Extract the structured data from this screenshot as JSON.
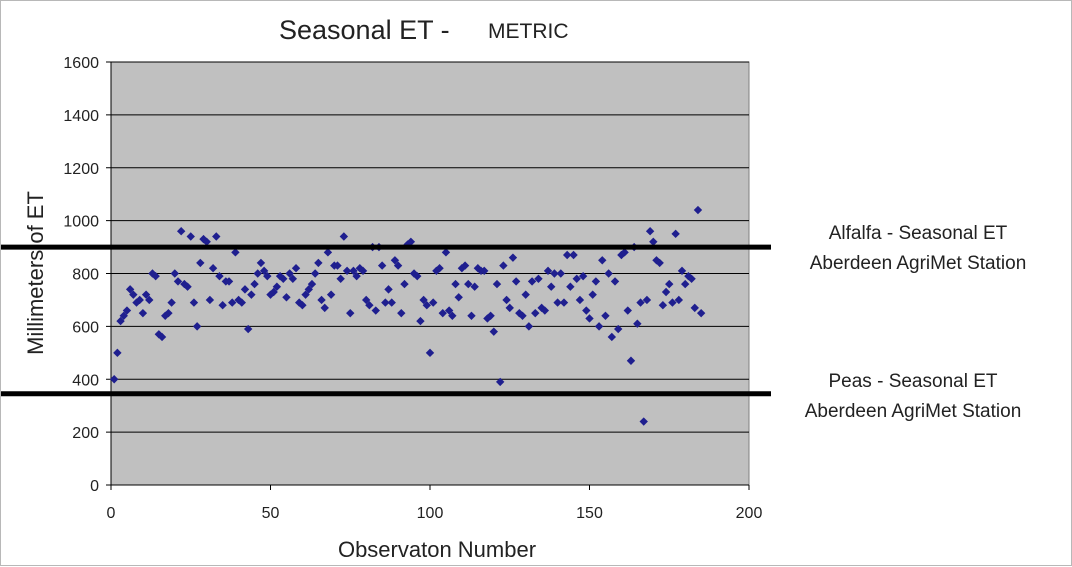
{
  "chart_data": {
    "type": "scatter",
    "title": "Seasonal ET -",
    "title_suffix": "METRIC",
    "xlabel": "Observaton Number",
    "ylabel": "Millimeters of ET",
    "xlim": [
      0,
      200
    ],
    "ylim": [
      0,
      1600
    ],
    "xticks": [
      0,
      50,
      100,
      150,
      200
    ],
    "yticks": [
      0,
      200,
      400,
      600,
      800,
      1000,
      1200,
      1400,
      1600
    ],
    "grid": true,
    "plot_background": "#c0c0c0",
    "point_color": "#1f1f8f",
    "reference_lines": [
      {
        "y": 900,
        "color": "#000000",
        "label_lines": [
          "Alfalfa - Seasonal ET",
          "Aberdeen AgriMet Station"
        ]
      },
      {
        "y": 345,
        "color": "#000000",
        "label_lines": [
          "Peas - Seasonal ET",
          "Aberdeen AgriMet Station"
        ]
      }
    ],
    "series": [
      {
        "points": [
          [
            1,
            400
          ],
          [
            2,
            500
          ],
          [
            3,
            620
          ],
          [
            4,
            640
          ],
          [
            5,
            660
          ],
          [
            6,
            740
          ],
          [
            7,
            720
          ],
          [
            8,
            690
          ],
          [
            9,
            700
          ],
          [
            10,
            650
          ],
          [
            11,
            720
          ],
          [
            12,
            700
          ],
          [
            13,
            800
          ],
          [
            14,
            790
          ],
          [
            15,
            570
          ],
          [
            16,
            560
          ],
          [
            17,
            640
          ],
          [
            18,
            650
          ],
          [
            19,
            690
          ],
          [
            20,
            800
          ],
          [
            21,
            770
          ],
          [
            22,
            960
          ],
          [
            23,
            760
          ],
          [
            24,
            750
          ],
          [
            25,
            940
          ],
          [
            26,
            690
          ],
          [
            27,
            600
          ],
          [
            28,
            840
          ],
          [
            29,
            930
          ],
          [
            30,
            920
          ],
          [
            31,
            700
          ],
          [
            32,
            820
          ],
          [
            33,
            940
          ],
          [
            34,
            790
          ],
          [
            35,
            680
          ],
          [
            36,
            770
          ],
          [
            37,
            770
          ],
          [
            38,
            690
          ],
          [
            39,
            880
          ],
          [
            40,
            700
          ],
          [
            41,
            690
          ],
          [
            42,
            740
          ],
          [
            43,
            590
          ],
          [
            44,
            720
          ],
          [
            45,
            760
          ],
          [
            46,
            800
          ],
          [
            47,
            840
          ],
          [
            48,
            810
          ],
          [
            49,
            790
          ],
          [
            50,
            720
          ],
          [
            51,
            730
          ],
          [
            52,
            750
          ],
          [
            53,
            790
          ],
          [
            54,
            780
          ],
          [
            55,
            710
          ],
          [
            56,
            800
          ],
          [
            57,
            780
          ],
          [
            58,
            820
          ],
          [
            59,
            690
          ],
          [
            60,
            680
          ],
          [
            61,
            720
          ],
          [
            62,
            740
          ],
          [
            63,
            760
          ],
          [
            64,
            800
          ],
          [
            65,
            840
          ],
          [
            66,
            700
          ],
          [
            67,
            670
          ],
          [
            68,
            880
          ],
          [
            69,
            720
          ],
          [
            70,
            830
          ],
          [
            71,
            830
          ],
          [
            72,
            780
          ],
          [
            73,
            940
          ],
          [
            74,
            810
          ],
          [
            75,
            650
          ],
          [
            76,
            810
          ],
          [
            77,
            790
          ],
          [
            78,
            820
          ],
          [
            79,
            810
          ],
          [
            80,
            700
          ],
          [
            81,
            680
          ],
          [
            82,
            900
          ],
          [
            83,
            660
          ],
          [
            84,
            900
          ],
          [
            85,
            830
          ],
          [
            86,
            690
          ],
          [
            87,
            740
          ],
          [
            88,
            690
          ],
          [
            89,
            850
          ],
          [
            90,
            830
          ],
          [
            91,
            650
          ],
          [
            92,
            760
          ],
          [
            93,
            910
          ],
          [
            94,
            920
          ],
          [
            95,
            800
          ],
          [
            96,
            790
          ],
          [
            97,
            620
          ],
          [
            98,
            700
          ],
          [
            99,
            680
          ],
          [
            100,
            500
          ],
          [
            101,
            690
          ],
          [
            102,
            810
          ],
          [
            103,
            820
          ],
          [
            104,
            650
          ],
          [
            105,
            880
          ],
          [
            106,
            660
          ],
          [
            107,
            640
          ],
          [
            108,
            760
          ],
          [
            109,
            710
          ],
          [
            110,
            820
          ],
          [
            111,
            830
          ],
          [
            112,
            760
          ],
          [
            113,
            640
          ],
          [
            114,
            750
          ],
          [
            115,
            820
          ],
          [
            116,
            810
          ],
          [
            117,
            810
          ],
          [
            118,
            630
          ],
          [
            119,
            640
          ],
          [
            120,
            580
          ],
          [
            121,
            760
          ],
          [
            122,
            390
          ],
          [
            123,
            830
          ],
          [
            124,
            700
          ],
          [
            125,
            670
          ],
          [
            126,
            860
          ],
          [
            127,
            770
          ],
          [
            128,
            650
          ],
          [
            129,
            640
          ],
          [
            130,
            720
          ],
          [
            131,
            600
          ],
          [
            132,
            770
          ],
          [
            133,
            650
          ],
          [
            134,
            780
          ],
          [
            135,
            670
          ],
          [
            136,
            660
          ],
          [
            137,
            810
          ],
          [
            138,
            750
          ],
          [
            139,
            800
          ],
          [
            140,
            690
          ],
          [
            141,
            800
          ],
          [
            142,
            690
          ],
          [
            143,
            870
          ],
          [
            144,
            750
          ],
          [
            145,
            870
          ],
          [
            146,
            780
          ],
          [
            147,
            700
          ],
          [
            148,
            790
          ],
          [
            149,
            660
          ],
          [
            150,
            630
          ],
          [
            151,
            720
          ],
          [
            152,
            770
          ],
          [
            153,
            600
          ],
          [
            154,
            850
          ],
          [
            155,
            640
          ],
          [
            156,
            800
          ],
          [
            157,
            560
          ],
          [
            158,
            770
          ],
          [
            159,
            590
          ],
          [
            160,
            870
          ],
          [
            161,
            880
          ],
          [
            162,
            660
          ],
          [
            163,
            470
          ],
          [
            164,
            900
          ],
          [
            165,
            610
          ],
          [
            166,
            690
          ],
          [
            167,
            240
          ],
          [
            168,
            700
          ],
          [
            169,
            960
          ],
          [
            170,
            920
          ],
          [
            171,
            850
          ],
          [
            172,
            840
          ],
          [
            173,
            680
          ],
          [
            174,
            730
          ],
          [
            175,
            760
          ],
          [
            176,
            690
          ],
          [
            177,
            950
          ],
          [
            178,
            700
          ],
          [
            179,
            810
          ],
          [
            180,
            760
          ],
          [
            181,
            790
          ],
          [
            182,
            780
          ],
          [
            183,
            670
          ],
          [
            184,
            1040
          ],
          [
            185,
            650
          ]
        ]
      }
    ]
  }
}
